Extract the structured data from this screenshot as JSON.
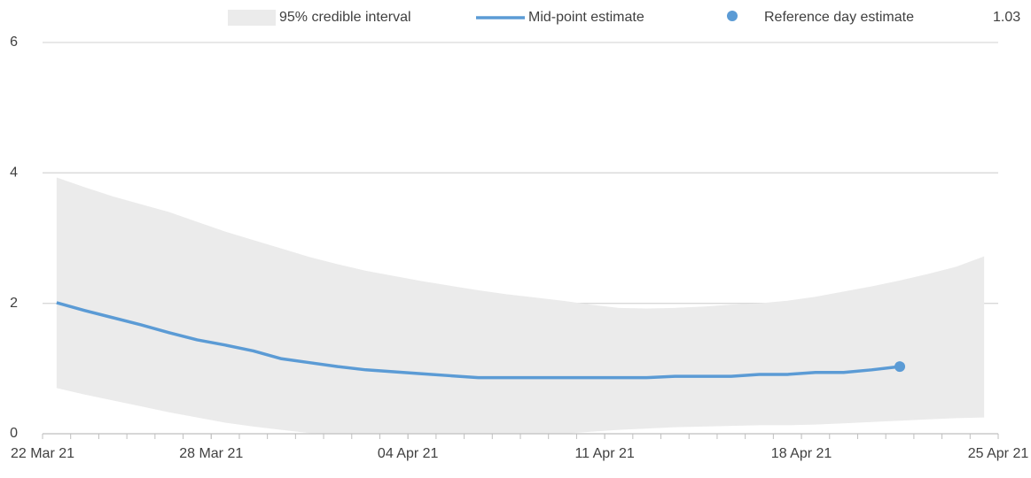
{
  "chart_data": {
    "type": "line",
    "x": [
      "2021-03-22",
      "2021-03-23",
      "2021-03-24",
      "2021-03-25",
      "2021-03-26",
      "2021-03-27",
      "2021-03-28",
      "2021-03-29",
      "2021-03-30",
      "2021-03-31",
      "2021-04-01",
      "2021-04-02",
      "2021-04-03",
      "2021-04-04",
      "2021-04-05",
      "2021-04-06",
      "2021-04-07",
      "2021-04-08",
      "2021-04-09",
      "2021-04-10",
      "2021-04-11",
      "2021-04-12",
      "2021-04-13",
      "2021-04-14",
      "2021-04-15",
      "2021-04-16",
      "2021-04-17",
      "2021-04-18",
      "2021-04-19",
      "2021-04-20",
      "2021-04-21",
      "2021-04-22",
      "2021-04-23",
      "2021-04-24"
    ],
    "series": [
      {
        "name": "95% credible interval",
        "color": "#ebebeb",
        "upper": [
          3.93,
          3.78,
          3.64,
          3.52,
          3.4,
          3.25,
          3.1,
          2.97,
          2.84,
          2.71,
          2.6,
          2.5,
          2.42,
          2.34,
          2.27,
          2.2,
          2.14,
          2.09,
          2.04,
          1.98,
          1.93,
          1.92,
          1.93,
          1.95,
          1.98,
          2.0,
          2.04,
          2.1,
          2.18,
          2.26,
          2.35,
          2.45,
          2.56,
          2.72
        ],
        "lower": [
          0.7,
          0.6,
          0.51,
          0.42,
          0.33,
          0.25,
          0.17,
          0.11,
          0.06,
          0.01,
          0,
          0,
          0,
          0,
          0,
          0,
          0,
          0,
          0,
          0.03,
          0.06,
          0.08,
          0.1,
          0.11,
          0.12,
          0.13,
          0.13,
          0.14,
          0.16,
          0.18,
          0.2,
          0.22,
          0.24,
          0.25
        ]
      },
      {
        "name": "Mid-point estimate",
        "color": "#5b9bd5",
        "values": [
          2.01,
          1.89,
          1.78,
          1.67,
          1.55,
          1.44,
          1.36,
          1.27,
          1.15,
          1.09,
          1.03,
          0.98,
          0.95,
          0.92,
          0.89,
          0.86,
          0.86,
          0.86,
          0.86,
          0.86,
          0.86,
          0.86,
          0.88,
          0.88,
          0.88,
          0.91,
          0.91,
          0.94,
          0.94,
          0.98,
          1.03,
          null,
          null,
          null
        ]
      },
      {
        "name": "Reference day estimate",
        "color": "#5b9bd5",
        "values": [
          null,
          null,
          null,
          null,
          null,
          null,
          null,
          null,
          null,
          null,
          null,
          null,
          null,
          null,
          null,
          null,
          null,
          null,
          null,
          null,
          null,
          null,
          null,
          null,
          null,
          null,
          null,
          null,
          null,
          null,
          1.03,
          null,
          null,
          null
        ]
      }
    ],
    "xlim": [
      "2021-03-22",
      "2021-04-25"
    ],
    "xticks": [
      {
        "value": "2021-03-22",
        "label": "22 Mar 21"
      },
      {
        "value": "2021-03-28",
        "label": "28 Mar 21"
      },
      {
        "value": "2021-04-04",
        "label": "04 Apr 21"
      },
      {
        "value": "2021-04-11",
        "label": "11 Apr 21"
      },
      {
        "value": "2021-04-18",
        "label": "18 Apr 21"
      },
      {
        "value": "2021-04-25",
        "label": "25 Apr 21"
      }
    ],
    "ylim": [
      0,
      6
    ],
    "yticks": [
      0,
      2,
      4,
      6
    ],
    "grid": true
  }
}
